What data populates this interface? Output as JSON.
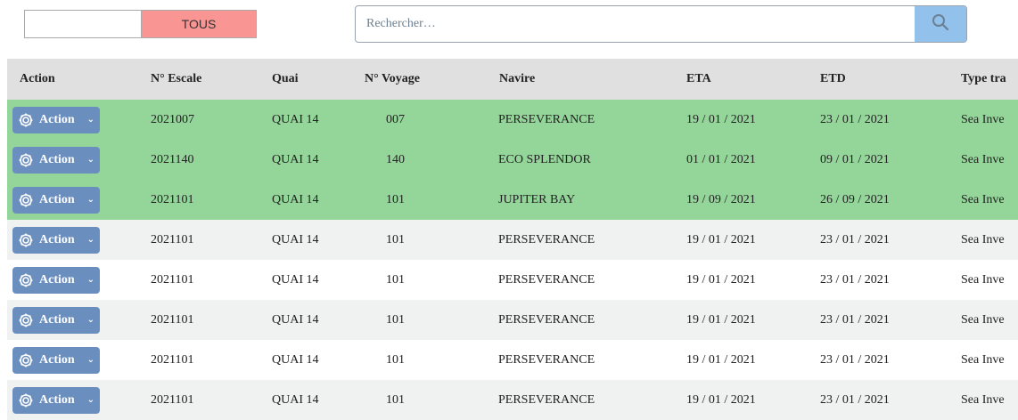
{
  "filter": {
    "tous_label": "TOUS",
    "left_value": ""
  },
  "search": {
    "placeholder": "Rechercher…",
    "icon": "search-icon"
  },
  "table": {
    "headers": [
      "Action",
      "N° Escale",
      "Quai",
      "N° Voyage",
      "Navire",
      "ETA",
      "ETD",
      "Type tra"
    ],
    "action_label": "Action",
    "rows": [
      {
        "escale": "2021007",
        "quai": "QUAI 14",
        "voyage": "007",
        "navire": "PERSEVERANCE",
        "eta": "19 / 01 / 2021",
        "etd": "23 / 01 / 2021",
        "type": "Sea Inve",
        "style": "hl"
      },
      {
        "escale": "2021140",
        "quai": "QUAI 14",
        "voyage": "140",
        "navire": "ECO SPLENDOR",
        "eta": "01 / 01 / 2021",
        "etd": "09 / 01 / 2021",
        "type": "Sea Inve",
        "style": "hl"
      },
      {
        "escale": "2021101",
        "quai": "QUAI 14",
        "voyage": "101",
        "navire": "JUPITER BAY",
        "eta": "19 / 09 / 2021",
        "etd": "26 / 09 / 2021",
        "type": "Sea Inve",
        "style": "hl"
      },
      {
        "escale": "2021101",
        "quai": "QUAI 14",
        "voyage": "101",
        "navire": "PERSEVERANCE",
        "eta": "19 / 01 / 2021",
        "etd": "23 / 01 / 2021",
        "type": "Sea Inve",
        "style": "alt"
      },
      {
        "escale": "2021101",
        "quai": "QUAI 14",
        "voyage": "101",
        "navire": "PERSEVERANCE",
        "eta": "19 / 01 / 2021",
        "etd": "23 / 01 / 2021",
        "type": "Sea Inve",
        "style": "wh"
      },
      {
        "escale": "2021101",
        "quai": "QUAI 14",
        "voyage": "101",
        "navire": "PERSEVERANCE",
        "eta": "19 / 01 / 2021",
        "etd": "23 / 01 / 2021",
        "type": "Sea Inve",
        "style": "alt"
      },
      {
        "escale": "2021101",
        "quai": "QUAI 14",
        "voyage": "101",
        "navire": "PERSEVERANCE",
        "eta": "19 / 01 / 2021",
        "etd": "23 / 01 / 2021",
        "type": "Sea Inve",
        "style": "wh"
      },
      {
        "escale": "2021101",
        "quai": "QUAI 14",
        "voyage": "101",
        "navire": "PERSEVERANCE",
        "eta": "19 / 01 / 2021",
        "etd": "23 / 01 / 2021",
        "type": "Sea Inve",
        "style": "alt"
      }
    ]
  },
  "colors": {
    "highlight_row": "#94d69a",
    "tous_bg": "#f99593",
    "search_button": "#92c1ec",
    "action_button": "#6a8ebd",
    "header_bg": "#e0e0e0"
  }
}
